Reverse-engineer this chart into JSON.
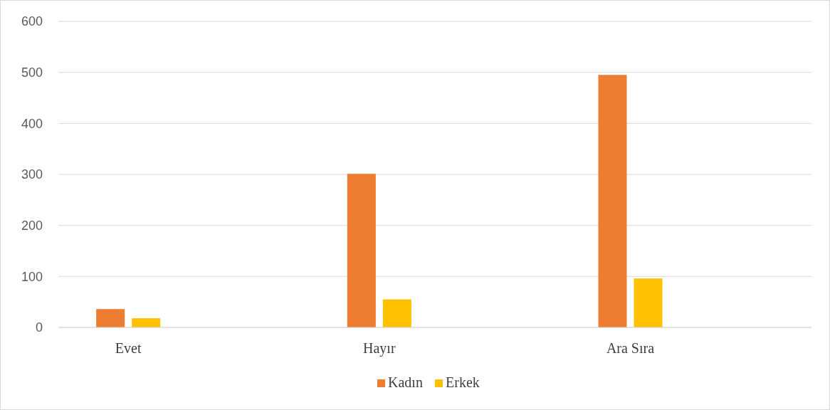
{
  "chart_data": {
    "type": "bar",
    "categories": [
      "Evet",
      "Hayır",
      "Ara Sıra"
    ],
    "series": [
      {
        "name": "Kadın",
        "color": "#ed7d31",
        "values": [
          36,
          301,
          495
        ]
      },
      {
        "name": "Erkek",
        "color": "#ffc000",
        "values": [
          18,
          55,
          96
        ]
      }
    ],
    "ylim": [
      0,
      600
    ],
    "yticks": [
      0,
      100,
      200,
      300,
      400,
      500,
      600
    ],
    "grid": "y",
    "legend": "bottom"
  }
}
